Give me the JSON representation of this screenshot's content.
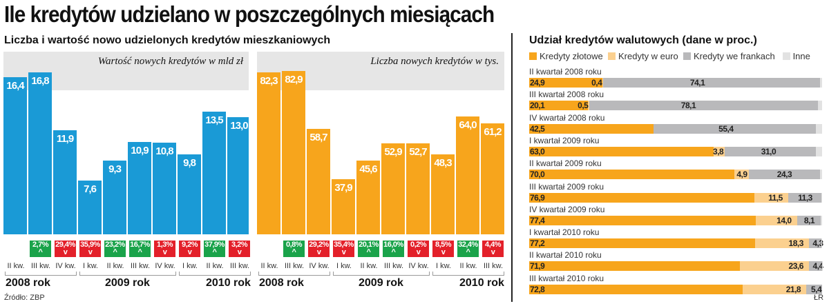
{
  "title": "Ile kredytów udzielano w poszczególnych miesiącach",
  "left_subtitle": "Liczba i wartość nowo udzielonych kredytów mieszkaniowych",
  "right_subtitle": "Udział kredytów walutowych (dane w proc.)",
  "source": "Źródło: ZBP",
  "credit": "ŁR",
  "colors": {
    "blue": "#1a9ad6",
    "orange": "#f7a51c",
    "light_orange": "#fbd08f",
    "gray": "#b9b9bb",
    "light_gray": "#e2e2e2",
    "up": "#1aa34a",
    "down": "#e3202a"
  },
  "chart_data": [
    {
      "type": "bar",
      "title": "Wartość nowych kredytów w mld zł",
      "color": "#1a9ad6",
      "categories": [
        "II kw.",
        "III kw.",
        "IV kw.",
        "I kw.",
        "II kw.",
        "III kw.",
        "IV kw.",
        "I kw.",
        "II kw.",
        "III kw."
      ],
      "values": [
        16.4,
        16.8,
        11.9,
        7.6,
        9.3,
        10.9,
        10.8,
        9.8,
        13.5,
        13.0
      ],
      "labels": [
        "16,4",
        "16,8",
        "11,9",
        "7,6",
        "9,3",
        "10,9",
        "10,8",
        "9,8",
        "13,5",
        "13,0"
      ],
      "changes": [
        null,
        {
          "text": "2,7%",
          "dir": "up"
        },
        {
          "text": "29,4%",
          "dir": "down"
        },
        {
          "text": "35,9%",
          "dir": "down"
        },
        {
          "text": "23,2%",
          "dir": "up"
        },
        {
          "text": "16,7%",
          "dir": "up"
        },
        {
          "text": "1,3%",
          "dir": "down"
        },
        {
          "text": "9,2%",
          "dir": "down"
        },
        {
          "text": "37,9%",
          "dir": "up"
        },
        {
          "text": "3,2%",
          "dir": "down"
        }
      ],
      "years": [
        {
          "label": "2008 rok",
          "count": 3
        },
        {
          "label": "2009 rok",
          "count": 4
        },
        {
          "label": "2010 rok",
          "count": 3
        }
      ],
      "ylim": [
        3,
        18
      ]
    },
    {
      "type": "bar",
      "title": "Liczba nowych kredytów w tys.",
      "color": "#f7a51c",
      "categories": [
        "II kw.",
        "III kw.",
        "IV kw.",
        "I kw.",
        "II kw.",
        "III kw.",
        "IV kw.",
        "I kw.",
        "II kw.",
        "III kw."
      ],
      "values": [
        82.3,
        82.9,
        58.7,
        37.9,
        45.6,
        52.9,
        52.7,
        48.3,
        64.0,
        61.2
      ],
      "labels": [
        "82,3",
        "82,9",
        "58,7",
        "37,9",
        "45,6",
        "52,9",
        "52,7",
        "48,3",
        "64,0",
        "61,2"
      ],
      "changes": [
        null,
        {
          "text": "0,8%",
          "dir": "up"
        },
        {
          "text": "29,2%",
          "dir": "down"
        },
        {
          "text": "35,4%",
          "dir": "down"
        },
        {
          "text": "20,1%",
          "dir": "up"
        },
        {
          "text": "16,0%",
          "dir": "up"
        },
        {
          "text": "0,2%",
          "dir": "down"
        },
        {
          "text": "8,5%",
          "dir": "down"
        },
        {
          "text": "32,4%",
          "dir": "up"
        },
        {
          "text": "4,4%",
          "dir": "down"
        }
      ],
      "years": [
        {
          "label": "2008 rok",
          "count": 3
        },
        {
          "label": "2009 rok",
          "count": 4
        },
        {
          "label": "2010 rok",
          "count": 3
        }
      ],
      "ylim": [
        15,
        88
      ]
    },
    {
      "type": "bar",
      "stacked": true,
      "orientation": "horizontal",
      "title": "Udział kredytów walutowych (dane w proc.)",
      "series_names": [
        "Kredyty złotowe",
        "Kredyty w euro",
        "Kredyty we frankach",
        "Inne"
      ],
      "series_colors": [
        "#f7a51c",
        "#fbd08f",
        "#b9b9bb",
        "#e2e2e2"
      ],
      "categories": [
        "II kwartał 2008 roku",
        "III kwartał 2008 roku",
        "IV kwartał 2008 roku",
        "I kwartał 2009 roku",
        "II kwartał 2009 roku",
        "III kwartał 2009 roku",
        "IV kwartał 2009 roku",
        "I kwartał 2010 roku",
        "II kwartał 2010 roku",
        "III kwartał 2010 roku"
      ],
      "rows": [
        {
          "zl": 24.9,
          "eur": 0.4,
          "chf": 74.1,
          "labels": [
            "24,9",
            "0,4",
            "74,1"
          ]
        },
        {
          "zl": 20.1,
          "eur": 0.5,
          "chf": 78.1,
          "labels": [
            "20,1",
            "0,5",
            "78,1"
          ]
        },
        {
          "zl": 42.5,
          "eur": 0,
          "chf": 55.4,
          "labels": [
            "42,5",
            "",
            "55,4"
          ]
        },
        {
          "zl": 63.0,
          "eur": 3.8,
          "chf": 31.0,
          "labels": [
            "63,0",
            "3,8",
            "31,0"
          ]
        },
        {
          "zl": 70.0,
          "eur": 4.9,
          "chf": 24.3,
          "labels": [
            "70,0",
            "4,9",
            "24,3"
          ]
        },
        {
          "zl": 76.9,
          "eur": 11.5,
          "chf": 11.3,
          "labels": [
            "76,9",
            "11,5",
            "11,3"
          ]
        },
        {
          "zl": 77.4,
          "eur": 14.0,
          "chf": 8.1,
          "labels": [
            "77,4",
            "14,0",
            "8,1"
          ]
        },
        {
          "zl": 77.2,
          "eur": 18.3,
          "chf": 4.3,
          "labels": [
            "77,2",
            "18,3",
            "4,3"
          ]
        },
        {
          "zl": 71.9,
          "eur": 23.6,
          "chf": 4.4,
          "labels": [
            "71,9",
            "23,6",
            "4,4"
          ]
        },
        {
          "zl": 72.8,
          "eur": 21.8,
          "chf": 5.4,
          "labels": [
            "72,8",
            "21,8",
            "5,4"
          ]
        }
      ]
    }
  ]
}
